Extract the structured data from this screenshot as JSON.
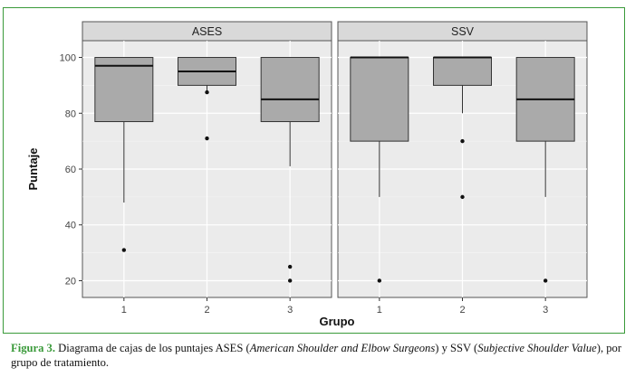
{
  "chart_data": {
    "type": "boxplot",
    "xlabel": "Grupo",
    "ylabel": "Puntaje",
    "ylim": [
      14,
      106
    ],
    "yticks": [
      20,
      40,
      60,
      80,
      100
    ],
    "categories": [
      "1",
      "2",
      "3"
    ],
    "grid": true,
    "box_fill": "#aaaaaa",
    "panel_bg": "#ebebeb",
    "strip_bg": "#d9d9d9",
    "panels": [
      {
        "strip": "ASES",
        "boxes": [
          {
            "group": "1",
            "lower": 48,
            "q1": 77,
            "median": 97,
            "q3": 100,
            "upper": 100,
            "outliers": [
              31
            ]
          },
          {
            "group": "2",
            "lower": 88,
            "q1": 90,
            "median": 95,
            "q3": 100,
            "upper": 100,
            "outliers": [
              71,
              87.5
            ]
          },
          {
            "group": "3",
            "lower": 61,
            "q1": 77,
            "median": 85,
            "q3": 100,
            "upper": 100,
            "outliers": [
              25,
              20
            ]
          }
        ]
      },
      {
        "strip": "SSV",
        "boxes": [
          {
            "group": "1",
            "lower": 50,
            "q1": 70,
            "median": 100,
            "q3": 100,
            "upper": 100,
            "outliers": [
              20
            ]
          },
          {
            "group": "2",
            "lower": 80,
            "q1": 90,
            "median": 100,
            "q3": 100,
            "upper": 100,
            "outliers": [
              70,
              50
            ]
          },
          {
            "group": "3",
            "lower": 50,
            "q1": 70,
            "median": 85,
            "q3": 100,
            "upper": 100,
            "outliers": [
              20
            ]
          }
        ]
      }
    ]
  },
  "caption": {
    "figure_label": "Figura 3.",
    "text_1": " Diagrama de cajas de los puntajes ASES (",
    "italic_1": "American Shoulder and Elbow Surgeons",
    "text_2": ") y SSV (",
    "italic_2": "Subjective Shoulder Value",
    "text_3": "), por grupo de tratamiento."
  }
}
